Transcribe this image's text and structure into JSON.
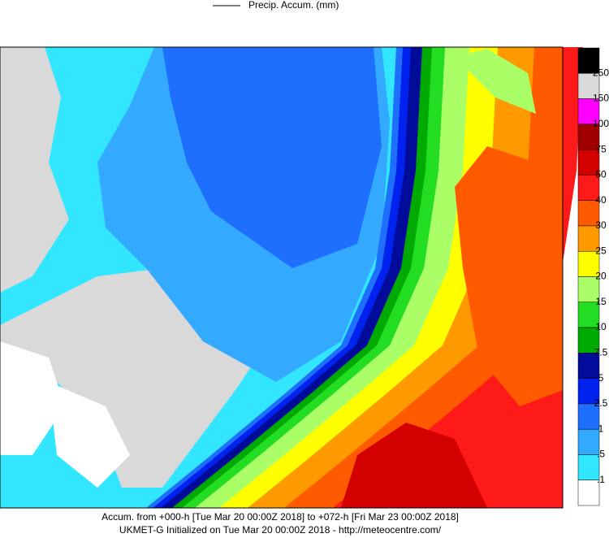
{
  "legend": {
    "title": "Precip. Accum. (mm)"
  },
  "colorbar": {
    "labels": [
      "250",
      "150",
      "100",
      "75",
      "50",
      "40",
      "30",
      "25",
      "20",
      "15",
      "10",
      "7.5",
      "5",
      "2.5",
      "1",
      ".5",
      ".1"
    ],
    "colors": [
      "#000000",
      "#d9d9d9",
      "#ff00ff",
      "#a00000",
      "#d40000",
      "#ff1a1a",
      "#ff5a00",
      "#ff9900",
      "#ffff00",
      "#aaff66",
      "#22dd22",
      "#00aa00",
      "#000c99",
      "#0022ee",
      "#1f6fff",
      "#33aaff",
      "#33e6ff",
      "#ffffff"
    ]
  },
  "footer": {
    "line1": "Accum. from +000-h [Tue Mar 20 00:00Z 2018] to +072-h [Fri Mar 23 00:00Z 2018]",
    "line2": "UKMET-G Initialized on Tue Mar 20 00:00Z 2018 - http://meteocentre.com/"
  }
}
